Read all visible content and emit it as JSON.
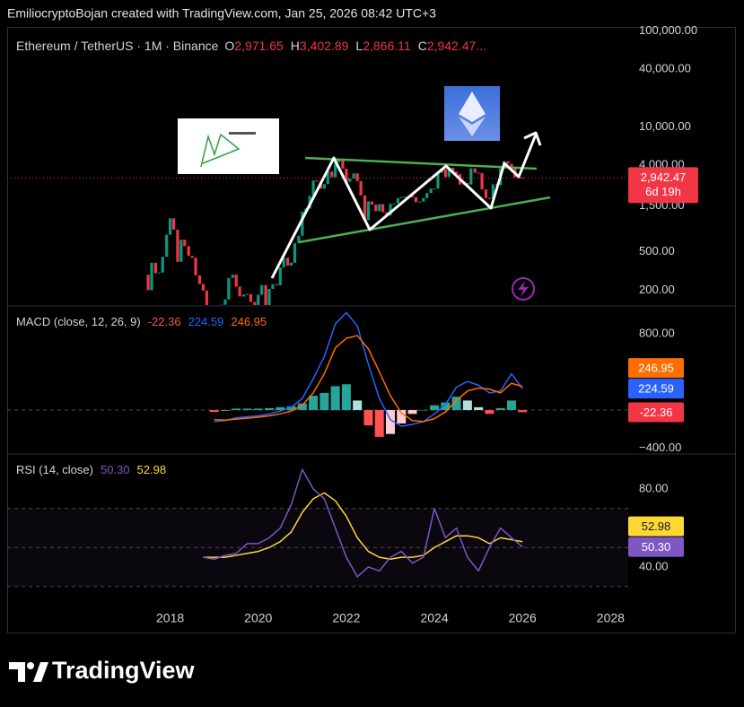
{
  "header": {
    "text": "EmiliocryptoBojan created with TradingView.com, Jan 25, 2026 08:42 UTC+3"
  },
  "footer": {
    "brand": "TradingView"
  },
  "chart_data": [
    {
      "type": "candlestick",
      "title": "Ethereum / TetherUS · 1M · Binance",
      "ohlc": [
        {
          "key": "O",
          "value": "2,971.65"
        },
        {
          "key": "H",
          "value": "3,402.89"
        },
        {
          "key": "L",
          "value": "2,866.11"
        },
        {
          "key": "C",
          "value": "2,942.47"
        }
      ],
      "ellipsis": "...",
      "log": true,
      "xlim": [
        2014.3,
        2028.4
      ],
      "ylim": [
        140,
        110000
      ],
      "yticks": [
        {
          "value": 100000,
          "label": "100,000.00"
        },
        {
          "value": 40000,
          "label": "40,000.00"
        },
        {
          "value": 10000,
          "label": "10,000.00"
        },
        {
          "value": 4000,
          "label": "4,000.00"
        },
        {
          "value": 1500,
          "label": "1,500.00"
        },
        {
          "value": 500,
          "label": "500.00"
        },
        {
          "value": 200,
          "label": "200.00"
        }
      ],
      "up_color": "#089981",
      "down_color": "#f23645",
      "x": [
        2017.42,
        2017.5,
        2017.58,
        2017.67,
        2017.75,
        2017.83,
        2017.92,
        2018,
        2018.08,
        2018.17,
        2018.25,
        2018.33,
        2018.42,
        2018.5,
        2018.58,
        2018.67,
        2018.75,
        2018.83,
        2018.92,
        2019,
        2019.08,
        2019.17,
        2019.25,
        2019.33,
        2019.42,
        2019.5,
        2019.58,
        2019.67,
        2019.75,
        2019.83,
        2019.92,
        2020,
        2020.08,
        2020.17,
        2020.25,
        2020.33,
        2020.42,
        2020.5,
        2020.58,
        2020.67,
        2020.75,
        2020.83,
        2020.92,
        2021,
        2021.08,
        2021.17,
        2021.25,
        2021.33,
        2021.42,
        2021.5,
        2021.58,
        2021.67,
        2021.75,
        2021.83,
        2021.92,
        2022,
        2022.08,
        2022.17,
        2022.25,
        2022.33,
        2022.42,
        2022.5,
        2022.58,
        2022.67,
        2022.75,
        2022.83,
        2022.92,
        2023,
        2023.08,
        2023.17,
        2023.25,
        2023.33,
        2023.42,
        2023.5,
        2023.58,
        2023.67,
        2023.75,
        2023.83,
        2023.92,
        2024,
        2024.08,
        2024.17,
        2024.25,
        2024.33,
        2024.42,
        2024.5,
        2024.58,
        2024.67,
        2024.75,
        2024.83,
        2024.92,
        2025,
        2025.08,
        2025.17,
        2025.25,
        2025.33,
        2025.42,
        2025.5,
        2025.58,
        2025.67,
        2025.75,
        2025.83,
        2025.92,
        2026
      ],
      "close": [
        290,
        200,
        385,
        300,
        305,
        445,
        755,
        1120,
        855,
        395,
        670,
        575,
        455,
        435,
        285,
        232,
        198,
        113,
        133,
        106,
        136,
        141,
        160,
        268,
        290,
        218,
        172,
        180,
        182,
        151,
        130,
        179,
        226,
        133,
        206,
        231,
        225,
        345,
        434,
        360,
        386,
        615,
        737,
        1314,
        1416,
        1918,
        2773,
        2706,
        2275,
        2536,
        3433,
        3001,
        4288,
        4630,
        3683,
        2688,
        2919,
        3282,
        2729,
        1942,
        1071,
        1679,
        1553,
        1328,
        1572,
        1295,
        1196,
        1585,
        1605,
        1822,
        1870,
        1874,
        1934,
        1857,
        1645,
        1671,
        1815,
        2052,
        2282,
        2283,
        3340,
        3646,
        3016,
        3763,
        3433,
        3232,
        2513,
        2603,
        2518,
        3705,
        3337,
        3300,
        2237,
        1822,
        1794,
        2528,
        2486,
        3698,
        4391,
        4145,
        3848,
        2990,
        2967,
        2942.47
      ],
      "close_label": "2,942.47",
      "countdown": "6d 19h",
      "price_line_color": "#f23645"
    },
    {
      "type": "macd",
      "title": "MACD (close, 12, 26, 9)",
      "xlim": [
        2014.3,
        2028.4
      ],
      "ylim": [
        -450,
        1080
      ],
      "yticks": [
        {
          "value": 800,
          "label": "800.00"
        },
        {
          "value": -400,
          "label": "−400.00"
        }
      ],
      "x": [
        2019,
        2019.25,
        2019.5,
        2019.75,
        2020,
        2020.25,
        2020.5,
        2020.75,
        2021,
        2021.25,
        2021.5,
        2021.75,
        2022,
        2022.25,
        2022.5,
        2022.75,
        2023,
        2023.25,
        2023.5,
        2023.75,
        2024,
        2024.25,
        2024.5,
        2024.75,
        2025,
        2025.25,
        2025.5,
        2025.75,
        2026
      ],
      "series": [
        {
          "style": "histogram",
          "colors": [
            "#26a69a",
            "#b2dfdb",
            "#ff5252",
            "#ffcdd2"
          ],
          "values": [
            -20,
            -5,
            15,
            15,
            15,
            20,
            30,
            40,
            70,
            150,
            180,
            250,
            270,
            100,
            -160,
            -280,
            -250,
            -140,
            -40,
            0,
            50,
            80,
            140,
            100,
            30,
            -40,
            20,
            100,
            -22.36
          ]
        },
        {
          "style": "line",
          "color": "#2962ff",
          "values": [
            -120,
            -110,
            -80,
            -70,
            -60,
            -40,
            -10,
            30,
            120,
            330,
            560,
            900,
            1020,
            880,
            480,
            120,
            -100,
            -170,
            -150,
            -120,
            -40,
            60,
            240,
            300,
            260,
            180,
            200,
            380,
            224.59
          ]
        },
        {
          "style": "line",
          "color": "#ff6d00",
          "values": [
            -100,
            -105,
            -95,
            -85,
            -75,
            -60,
            -40,
            -10,
            50,
            180,
            380,
            650,
            750,
            780,
            640,
            400,
            150,
            -30,
            -110,
            -120,
            -90,
            -20,
            100,
            200,
            230,
            220,
            180,
            280,
            246.95
          ]
        }
      ]
    },
    {
      "type": "rsi",
      "title": "RSI (14, close)",
      "xlim": [
        2014.3,
        2028.4
      ],
      "ylim": [
        22.5,
        97.5
      ],
      "yticks": [
        {
          "value": 80,
          "label": "80.00"
        },
        {
          "value": 40,
          "label": "40.00"
        }
      ],
      "bands": [
        70,
        50,
        30
      ],
      "band_color": "#7e57c2",
      "xticks": [
        2018,
        2020,
        2022,
        2024,
        2026,
        2028
      ],
      "x": [
        2018.75,
        2019,
        2019.25,
        2019.5,
        2019.75,
        2020,
        2020.25,
        2020.5,
        2020.75,
        2021,
        2021.25,
        2021.5,
        2021.75,
        2022,
        2022.25,
        2022.5,
        2022.75,
        2023,
        2023.25,
        2023.5,
        2023.75,
        2024,
        2024.25,
        2024.5,
        2024.75,
        2025,
        2025.25,
        2025.5,
        2025.75,
        2026
      ],
      "series": [
        {
          "color": "#7e57c2",
          "values": [
            45,
            44,
            46,
            47,
            52,
            52,
            55,
            60,
            72,
            90,
            80,
            75,
            60,
            45,
            35,
            40,
            38,
            45,
            48,
            42,
            45,
            70,
            55,
            60,
            45,
            38,
            50,
            60,
            55,
            50.3
          ],
          "value_labels": [
            null,
            null,
            null,
            null,
            null,
            null,
            null,
            null,
            null,
            null,
            null,
            null,
            null,
            null,
            null,
            null,
            null,
            null,
            null,
            null,
            null,
            null,
            null,
            null,
            null,
            null,
            null,
            null,
            null,
            "50.30"
          ]
        },
        {
          "color": "#fdd835",
          "values": [
            45,
            45,
            45,
            46,
            47,
            48,
            50,
            53,
            58,
            68,
            75,
            78,
            74,
            66,
            55,
            48,
            45,
            44,
            45,
            45,
            46,
            50,
            53,
            56,
            56,
            55,
            52,
            55,
            54,
            52.98
          ]
        }
      ]
    }
  ]
}
